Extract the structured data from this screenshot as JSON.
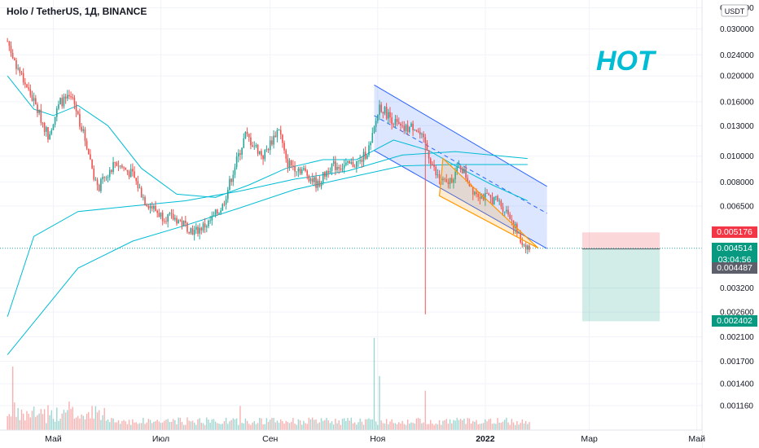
{
  "header": {
    "title": "Holo / TetherUS, 1Д, BINANCE"
  },
  "watermark": {
    "ticker": "HOT"
  },
  "axis": {
    "currency": "USDT"
  },
  "colors": {
    "up": "#26a69a",
    "down": "#ef5350",
    "ma": "#00bcd4",
    "channel": "#2962ff",
    "triangle": "#ff9800",
    "stop": "#f23645",
    "target": "#089981"
  },
  "price_tags": {
    "stop": "0.005176",
    "last": "0.004514",
    "countdown": "03:04:56",
    "entry": "0.004487",
    "target": "0.002402"
  },
  "chart_data": {
    "type": "candlestick",
    "title": "Holo / TetherUS, 1Д, BINANCE",
    "y_scale": "log",
    "y_ticks": [
      "0.036000",
      "0.030000",
      "0.024000",
      "0.020000",
      "0.016000",
      "0.013000",
      "0.010000",
      "0.008000",
      "0.006500",
      "0.005176",
      "0.004514",
      "0.004487",
      "0.003200",
      "0.002600",
      "0.002402",
      "0.002100",
      "0.001700",
      "0.001400",
      "0.001160"
    ],
    "x_ticks": [
      "Май",
      "Июл",
      "Сен",
      "Ноя",
      "2022",
      "Мар",
      "Май"
    ],
    "price_path": [
      [
        "2021-04-05",
        0.027
      ],
      [
        "2021-04-10",
        0.022
      ],
      [
        "2021-04-20",
        0.016
      ],
      [
        "2021-04-28",
        0.012
      ],
      [
        "2021-05-05",
        0.016
      ],
      [
        "2021-05-12",
        0.0165
      ],
      [
        "2021-05-20",
        0.011
      ],
      [
        "2021-05-26",
        0.0075
      ],
      [
        "2021-06-05",
        0.0095
      ],
      [
        "2021-06-15",
        0.0085
      ],
      [
        "2021-06-22",
        0.0068
      ],
      [
        "2021-07-01",
        0.006
      ],
      [
        "2021-07-10",
        0.0058
      ],
      [
        "2021-07-20",
        0.0052
      ],
      [
        "2021-07-28",
        0.0056
      ],
      [
        "2021-08-05",
        0.0065
      ],
      [
        "2021-08-12",
        0.0092
      ],
      [
        "2021-08-18",
        0.012
      ],
      [
        "2021-08-28",
        0.01
      ],
      [
        "2021-09-06",
        0.0128
      ],
      [
        "2021-09-10",
        0.0095
      ],
      [
        "2021-09-20",
        0.0088
      ],
      [
        "2021-09-28",
        0.0078
      ],
      [
        "2021-10-05",
        0.0092
      ],
      [
        "2021-10-15",
        0.0092
      ],
      [
        "2021-10-22",
        0.0095
      ],
      [
        "2021-10-28",
        0.011
      ],
      [
        "2021-11-02",
        0.0155
      ],
      [
        "2021-11-08",
        0.014
      ],
      [
        "2021-11-15",
        0.0125
      ],
      [
        "2021-11-22",
        0.013
      ],
      [
        "2021-11-28",
        0.011
      ],
      [
        "2021-12-04",
        0.0085
      ],
      [
        "2021-12-10",
        0.0078
      ],
      [
        "2021-12-18",
        0.0092
      ],
      [
        "2021-12-25",
        0.0075
      ],
      [
        "2022-01-01",
        0.007
      ],
      [
        "2022-01-08",
        0.0068
      ],
      [
        "2022-01-15",
        0.006
      ],
      [
        "2022-01-21",
        0.0048
      ],
      [
        "2022-01-26",
        0.004514
      ]
    ],
    "moving_averages": [
      {
        "path": [
          [
            "2021-04-05",
            0.02
          ],
          [
            "2021-04-20",
            0.015
          ],
          [
            "2021-05-01",
            0.0142
          ],
          [
            "2021-05-15",
            0.0155
          ],
          [
            "2021-06-01",
            0.013
          ],
          [
            "2021-06-20",
            0.009
          ],
          [
            "2021-07-10",
            0.0072
          ],
          [
            "2021-08-01",
            0.007
          ],
          [
            "2021-08-20",
            0.0078
          ],
          [
            "2021-09-10",
            0.009
          ],
          [
            "2021-10-01",
            0.0097
          ],
          [
            "2021-10-20",
            0.0097
          ],
          [
            "2021-11-10",
            0.0115
          ],
          [
            "2021-11-30",
            0.0105
          ],
          [
            "2021-12-15",
            0.0092
          ],
          [
            "2022-01-05",
            0.0078
          ],
          [
            "2022-01-25",
            0.0068
          ]
        ]
      },
      {
        "path": [
          [
            "2021-04-05",
            0.0025
          ],
          [
            "2021-04-20",
            0.005
          ],
          [
            "2021-05-15",
            0.0062
          ],
          [
            "2021-06-15",
            0.0065
          ],
          [
            "2021-07-15",
            0.0068
          ],
          [
            "2021-08-15",
            0.0074
          ],
          [
            "2021-09-15",
            0.0082
          ],
          [
            "2021-10-15",
            0.0088
          ],
          [
            "2021-11-15",
            0.0101
          ],
          [
            "2021-12-15",
            0.0104
          ],
          [
            "2022-01-25",
            0.0098
          ]
        ]
      },
      {
        "path": [
          [
            "2021-04-05",
            0.0018
          ],
          [
            "2021-05-15",
            0.0038
          ],
          [
            "2021-06-15",
            0.0048
          ],
          [
            "2021-07-15",
            0.0055
          ],
          [
            "2021-08-15",
            0.0064
          ],
          [
            "2021-09-15",
            0.0075
          ],
          [
            "2021-10-15",
            0.0083
          ],
          [
            "2021-11-15",
            0.0092
          ],
          [
            "2021-12-15",
            0.0093
          ],
          [
            "2022-01-25",
            0.0093
          ]
        ]
      }
    ],
    "descending_channel": {
      "upper": [
        [
          "2021-10-30",
          0.0185
        ],
        [
          "2022-02-05",
          0.0077
        ]
      ],
      "lower": [
        [
          "2021-10-30",
          0.0105
        ],
        [
          "2022-02-05",
          0.0045
        ]
      ],
      "mid": [
        [
          "2021-10-30",
          0.0142
        ],
        [
          "2022-02-05",
          0.0061
        ]
      ]
    },
    "falling_wedge": {
      "points": [
        [
          "2021-12-08",
          0.0098
        ],
        [
          "2022-01-31",
          0.00452
        ],
        [
          "2021-12-06",
          0.0071
        ]
      ]
    },
    "spike_low": {
      "date": "2021-11-28",
      "value": 0.00255
    },
    "position": {
      "start": "2022-02-25",
      "end": "2022-04-10",
      "stop": 0.005176,
      "entry": 0.004487,
      "target": 0.002402
    },
    "volume_spikes": [
      [
        "2021-04-08",
        1.0
      ],
      [
        "2021-05-10",
        0.45
      ],
      [
        "2021-08-15",
        0.38
      ],
      [
        "2021-10-30",
        1.45
      ],
      [
        "2021-11-02",
        0.85
      ],
      [
        "2021-11-28",
        0.62
      ]
    ]
  }
}
